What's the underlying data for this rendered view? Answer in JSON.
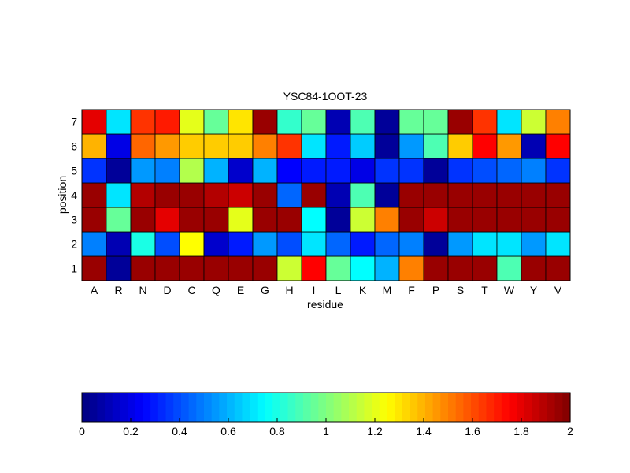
{
  "chart_data": [
    {
      "type": "heatmap",
      "title": "YSC84-1OOT-23",
      "xlabel": "residue",
      "ylabel": "position",
      "x_categories": [
        "A",
        "R",
        "N",
        "D",
        "C",
        "Q",
        "E",
        "G",
        "H",
        "I",
        "L",
        "K",
        "M",
        "F",
        "P",
        "S",
        "T",
        "W",
        "Y",
        "V"
      ],
      "y_categories": [
        "1",
        "2",
        "3",
        "4",
        "5",
        "6",
        "7"
      ],
      "colormap": "jet",
      "clim": [
        0,
        2
      ],
      "grid": true,
      "values": [
        [
          1.95,
          0.05,
          1.95,
          1.95,
          1.95,
          1.95,
          1.95,
          1.95,
          1.15,
          1.75,
          0.95,
          0.75,
          0.6,
          1.5,
          1.95,
          1.95,
          1.95,
          0.9,
          1.95,
          1.95
        ],
        [
          0.5,
          0.1,
          0.8,
          0.4,
          1.25,
          0.15,
          0.3,
          0.55,
          0.4,
          0.7,
          0.45,
          0.3,
          0.45,
          0.5,
          0.05,
          0.55,
          0.7,
          0.7,
          0.55,
          0.7
        ],
        [
          1.95,
          0.95,
          1.95,
          1.8,
          1.95,
          1.95,
          1.2,
          1.95,
          1.95,
          0.75,
          0.05,
          1.15,
          1.5,
          1.95,
          1.85,
          1.95,
          1.95,
          1.95,
          1.95,
          1.95
        ],
        [
          1.95,
          0.7,
          1.9,
          1.95,
          1.95,
          1.9,
          1.85,
          1.95,
          0.45,
          1.95,
          0.1,
          0.9,
          0.05,
          1.95,
          1.95,
          1.95,
          1.95,
          1.95,
          1.95,
          1.95
        ],
        [
          0.35,
          0.05,
          0.55,
          0.5,
          1.1,
          0.6,
          0.15,
          0.6,
          0.25,
          0.3,
          0.3,
          0.2,
          0.35,
          0.35,
          0.05,
          0.35,
          0.4,
          0.45,
          0.5,
          0.35
        ],
        [
          1.4,
          0.2,
          1.55,
          1.45,
          1.35,
          1.35,
          1.35,
          1.5,
          1.65,
          0.7,
          0.3,
          0.65,
          0.05,
          0.55,
          0.9,
          1.35,
          1.75,
          1.45,
          0.1,
          1.75
        ],
        [
          1.8,
          0.7,
          1.65,
          1.7,
          1.2,
          0.95,
          1.3,
          1.95,
          0.85,
          0.95,
          0.1,
          0.9,
          0.05,
          0.95,
          0.95,
          1.95,
          1.65,
          0.7,
          1.15,
          1.5
        ]
      ]
    },
    {
      "type": "colorbar",
      "colormap": "jet",
      "range": [
        0,
        2
      ],
      "ticks": [
        "0",
        "0.2",
        "0.4",
        "0.6",
        "0.8",
        "1",
        "1.2",
        "1.4",
        "1.6",
        "1.8",
        "2"
      ]
    }
  ]
}
